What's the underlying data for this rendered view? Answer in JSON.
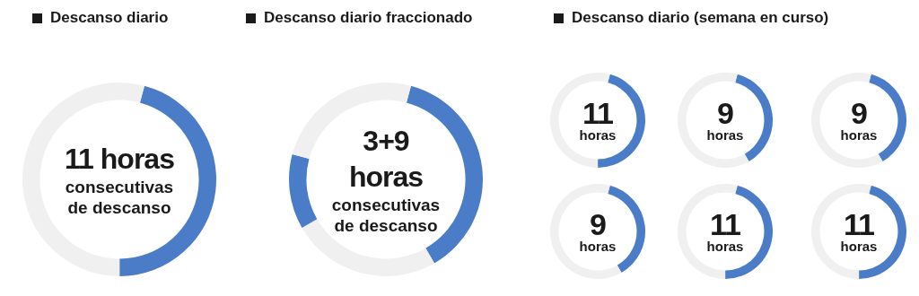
{
  "chart_data": [
    {
      "type": "donut",
      "title": "Descanso diario",
      "categories": [
        null,
        null
      ],
      "values": [
        45.8,
        54.2
      ],
      "colors": [
        "#4a7cc7",
        "#f0f0f0"
      ],
      "annotations": [
        "11 horas",
        "consecutivas de descanso"
      ]
    },
    {
      "type": "donut",
      "title": "Descanso diario fraccionado",
      "categories": [
        null,
        null,
        null,
        null
      ],
      "values": [
        37.5,
        25,
        12.5,
        25
      ],
      "colors": [
        "#4a7cc7",
        "#f0f0f0",
        "#4a7cc7",
        "#f0f0f0"
      ],
      "annotations": [
        "3+9 horas",
        "consecutivas de descanso"
      ]
    },
    {
      "type": "donut",
      "title": "Descanso diario (semana en curso)",
      "categories": [
        null,
        null
      ],
      "values": [
        45.8,
        54.2
      ],
      "colors": [
        "#4a7cc7",
        "#f0f0f0"
      ],
      "annotations": [
        "11",
        "horas"
      ]
    },
    {
      "type": "donut",
      "categories": [
        null,
        null
      ],
      "values": [
        37.5,
        62.5
      ],
      "colors": [
        "#4a7cc7",
        "#f0f0f0"
      ],
      "annotations": [
        "9",
        "horas"
      ]
    },
    {
      "type": "donut",
      "categories": [
        null,
        null
      ],
      "values": [
        37.5,
        62.5
      ],
      "colors": [
        "#4a7cc7",
        "#f0f0f0"
      ],
      "annotations": [
        "9",
        "horas"
      ]
    },
    {
      "type": "donut",
      "categories": [
        null,
        null
      ],
      "values": [
        37.5,
        62.5
      ],
      "colors": [
        "#4a7cc7",
        "#f0f0f0"
      ],
      "annotations": [
        "9",
        "horas"
      ]
    },
    {
      "type": "donut",
      "categories": [
        null,
        null
      ],
      "values": [
        45.8,
        54.2
      ],
      "colors": [
        "#4a7cc7",
        "#f0f0f0"
      ],
      "annotations": [
        "11",
        "horas"
      ]
    },
    {
      "type": "donut",
      "categories": [
        null,
        null
      ],
      "values": [
        45.8,
        54.2
      ],
      "colors": [
        "#4a7cc7",
        "#f0f0f0"
      ],
      "annotations": [
        "11",
        "horas"
      ]
    }
  ]
}
